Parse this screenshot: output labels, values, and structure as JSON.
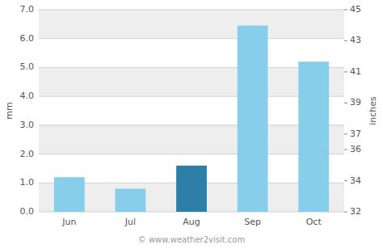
{
  "chart_data": {
    "type": "bar",
    "categories": [
      "Jun",
      "Jul",
      "Aug",
      "Sep",
      "Oct"
    ],
    "values": [
      1.2,
      0.8,
      1.6,
      6.45,
      5.2
    ],
    "colors": [
      "#87CEEB",
      "#87CEEB",
      "#2E7FA8",
      "#87CEEB",
      "#87CEEB"
    ],
    "ylabel": "mm",
    "y2label": "inches",
    "ylim": [
      0.0,
      7.0
    ],
    "yticks": [
      {
        "value": 0.0,
        "label": "0.0"
      },
      {
        "value": 1.0,
        "label": "1.0"
      },
      {
        "value": 2.0,
        "label": "2.0"
      },
      {
        "value": 3.0,
        "label": "3.0"
      },
      {
        "value": 4.0,
        "label": "4.0"
      },
      {
        "value": 5.0,
        "label": "5.0"
      },
      {
        "value": 6.0,
        "label": "6.0"
      },
      {
        "value": 7.0,
        "label": "7.0"
      }
    ],
    "y2lim": [
      32,
      45
    ],
    "y2ticks": [
      32,
      34,
      36,
      37,
      39,
      41,
      43,
      45
    ],
    "grid": true,
    "annotations": [
      {
        "text": "© www.weather2visit.com"
      }
    ]
  }
}
